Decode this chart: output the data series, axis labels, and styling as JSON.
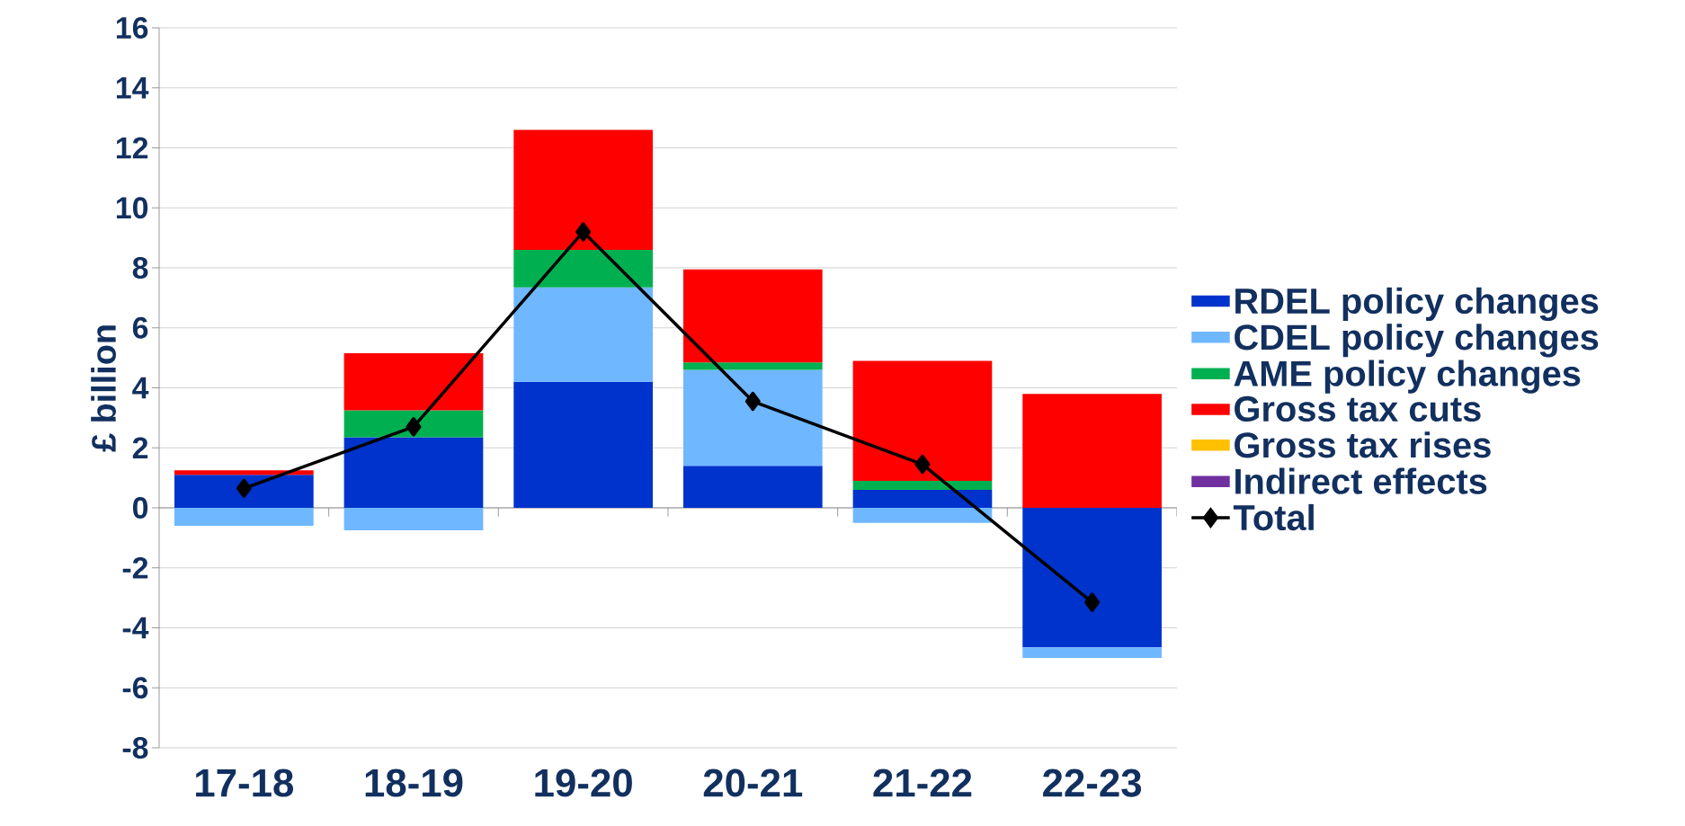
{
  "chart_data": {
    "type": "bar",
    "stacked": true,
    "ylabel": "£ billion",
    "categories": [
      "17-18",
      "18-19",
      "19-20",
      "20-21",
      "21-22",
      "22-23"
    ],
    "series": [
      {
        "name": "RDEL policy changes",
        "color": "#0033cc",
        "values": [
          1.1,
          2.35,
          4.2,
          1.4,
          0.6,
          -4.65
        ]
      },
      {
        "name": "CDEL policy changes",
        "color": "#6fb7ff",
        "values": [
          -0.6,
          -0.75,
          3.15,
          3.2,
          -0.5,
          -0.35
        ]
      },
      {
        "name": "AME policy changes",
        "color": "#00b050",
        "values": [
          0,
          0.9,
          1.25,
          0.25,
          0.3,
          0
        ]
      },
      {
        "name": "Gross tax cuts",
        "color": "#ff0000",
        "values": [
          0.15,
          1.9,
          4.0,
          3.1,
          4.0,
          3.8
        ]
      },
      {
        "name": "Gross tax rises",
        "color": "#ffc000",
        "values": [
          0,
          0,
          0,
          0,
          0,
          0
        ]
      },
      {
        "name": "Indirect effects",
        "color": "#7030a0",
        "values": [
          0,
          0,
          0,
          0,
          0,
          0
        ]
      },
      {
        "name": "Total",
        "type": "line",
        "marker": "diamond",
        "color": "#000000",
        "values": [
          0.65,
          2.7,
          9.2,
          3.55,
          1.45,
          -3.15
        ]
      }
    ],
    "ylim": [
      -8,
      16
    ],
    "yticks": [
      -8,
      -6,
      -4,
      -2,
      0,
      2,
      4,
      6,
      8,
      10,
      12,
      14,
      16
    ],
    "grid": "y",
    "legend": "right"
  }
}
